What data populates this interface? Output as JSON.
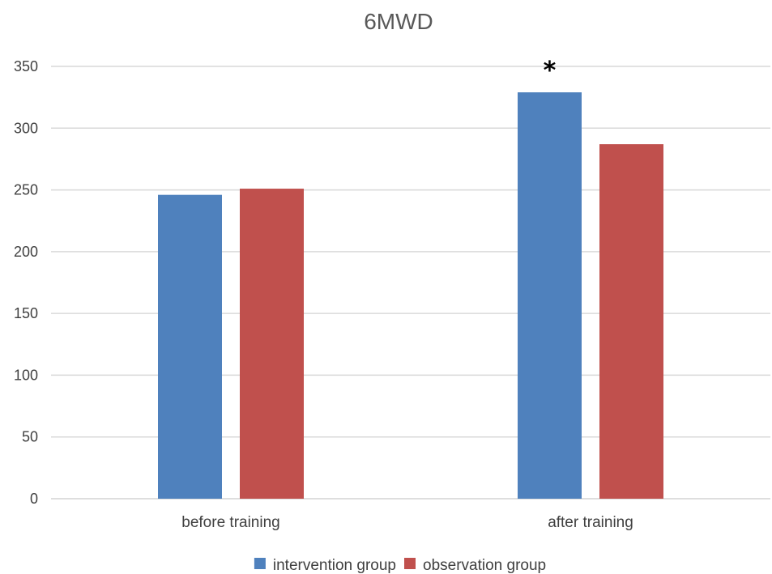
{
  "chart_data": {
    "type": "bar",
    "title": "6MWD",
    "xlabel": "",
    "ylabel": "",
    "categories": [
      "before training",
      "after training"
    ],
    "series": [
      {
        "name": "intervention group",
        "values": [
          246,
          329
        ],
        "color": "#4F81BD"
      },
      {
        "name": "observation group",
        "values": [
          251,
          287
        ],
        "color": "#C0504D"
      }
    ],
    "ylim": [
      0,
      350
    ],
    "yticks": [
      0,
      50,
      100,
      150,
      200,
      250,
      300,
      350
    ],
    "grid": true,
    "legend_position": "bottom",
    "annotations": [
      {
        "text": "*",
        "category": "after training",
        "series": "intervention group"
      }
    ]
  }
}
